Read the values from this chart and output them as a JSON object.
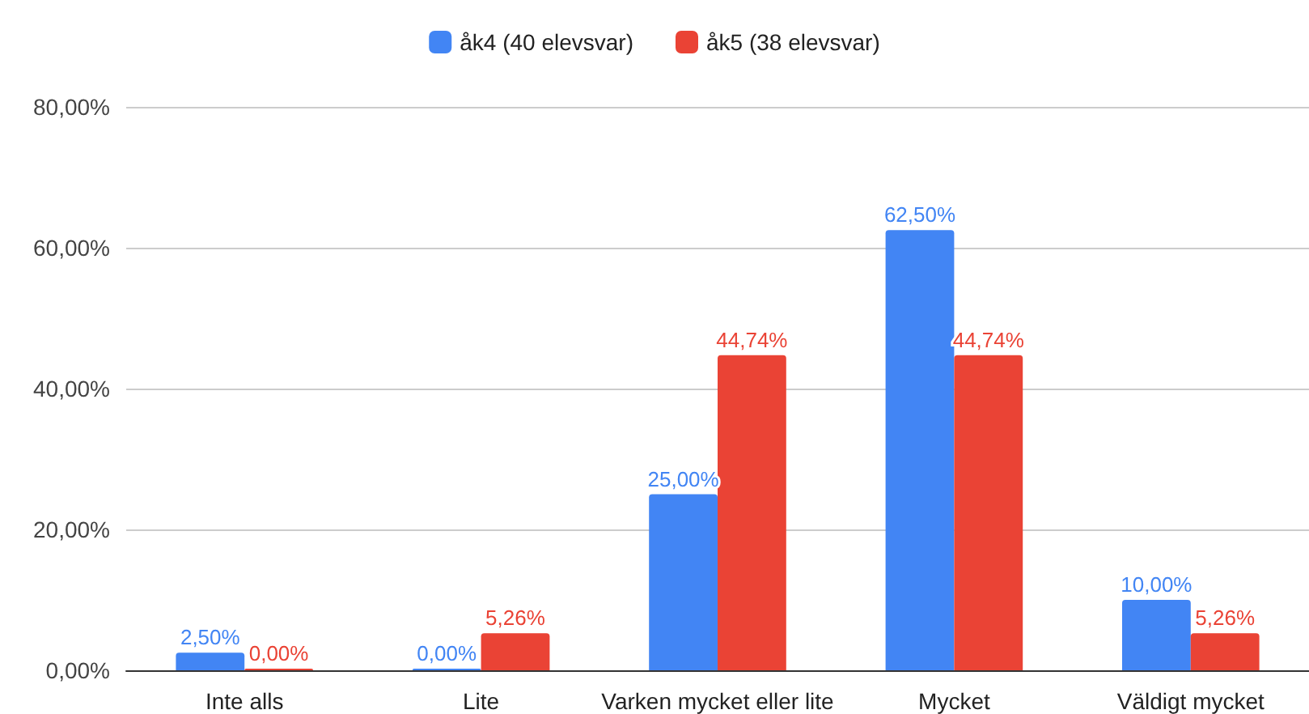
{
  "chart_data": {
    "type": "bar",
    "categories": [
      "Inte alls",
      "Lite",
      "Varken mycket eller lite",
      "Mycket",
      "Väldigt mycket"
    ],
    "series": [
      {
        "name": "åk4 (40 elevsvar)",
        "color": "#4285f4",
        "values": [
          2.5,
          0,
          25,
          62.5,
          10
        ],
        "value_labels": [
          "2,50%",
          "0,00%",
          "25,00%",
          "62,50%",
          "10,00%"
        ]
      },
      {
        "name": "åk5 (38 elevsvar)",
        "color": "#ea4335",
        "values": [
          0,
          5.26,
          44.74,
          44.74,
          5.26
        ],
        "value_labels": [
          "0,00%",
          "5,26%",
          "44,74%",
          "44,74%",
          "5,26%"
        ]
      }
    ],
    "ylim": [
      0,
      80
    ],
    "yticks": [
      {
        "value": 0,
        "label": "0,00%"
      },
      {
        "value": 20,
        "label": "20,00%"
      },
      {
        "value": 40,
        "label": "40,00%"
      },
      {
        "value": 60,
        "label": "60,00%"
      },
      {
        "value": 80,
        "label": "80,00%"
      }
    ],
    "grid": "y",
    "legend": "top"
  }
}
